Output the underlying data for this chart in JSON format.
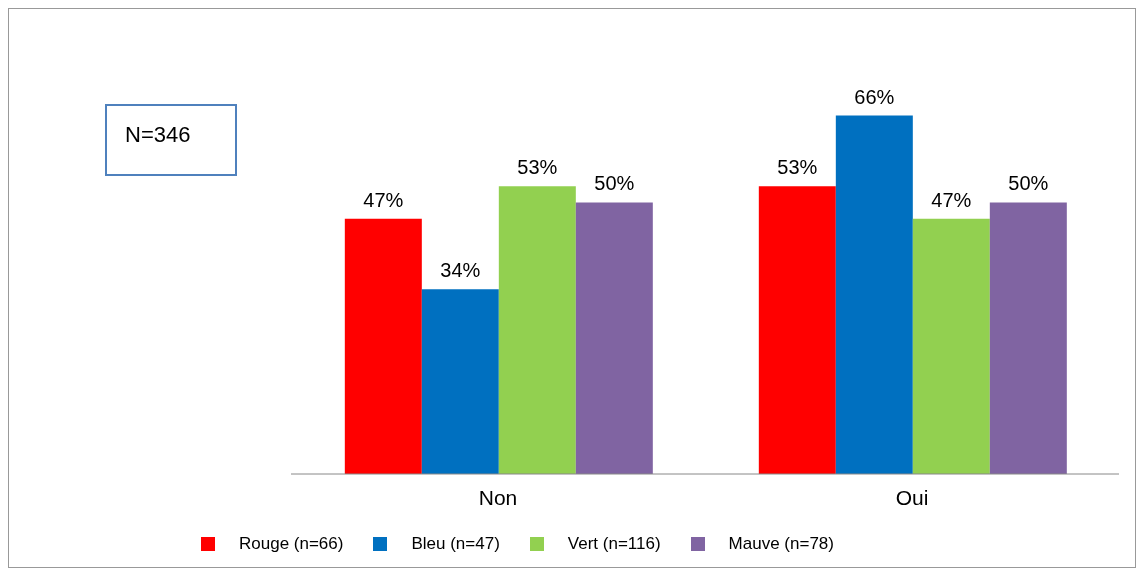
{
  "chart_data": {
    "type": "bar",
    "categories": [
      "Non",
      "Oui"
    ],
    "series": [
      {
        "name": "Rouge (n=66)",
        "color": "#ff0000",
        "values": [
          47,
          53
        ],
        "value_labels": [
          "47%",
          "53%"
        ]
      },
      {
        "name": "Bleu (n=47)",
        "color": "#0070c0",
        "values": [
          34,
          66
        ],
        "value_labels": [
          "34%",
          "66%"
        ]
      },
      {
        "name": "Vert (n=116)",
        "color": "#92d050",
        "values": [
          53,
          47
        ],
        "value_labels": [
          "53%",
          "47%"
        ]
      },
      {
        "name": "Mauve (n=78)",
        "color": "#8064a2",
        "values": [
          50,
          50
        ],
        "value_labels": [
          "50%",
          "50%"
        ]
      }
    ],
    "legend": "bottom",
    "grid": false,
    "annotations": [
      "N=346"
    ]
  }
}
